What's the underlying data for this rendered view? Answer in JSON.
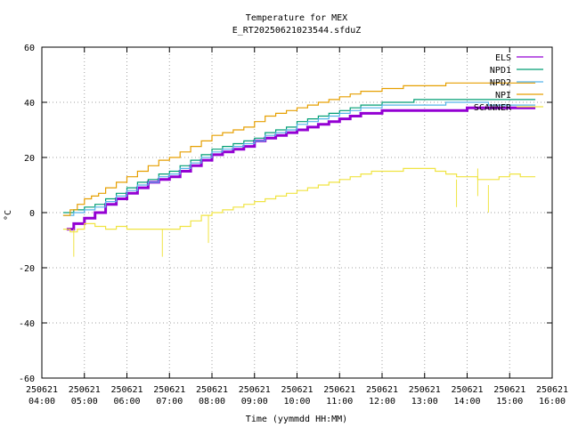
{
  "chart_data": {
    "type": "line",
    "title": "Temperature for MEX",
    "subtitle": "E_RT20250621023544.sfduZ",
    "xlabel": "Time (yymmdd HH:MM)",
    "ylabel": "°C",
    "xlim": [
      "250621 04:00",
      "250621 16:00"
    ],
    "ylim": [
      -60,
      60
    ],
    "grid": true,
    "legend_position": "top-right",
    "x_ticks": [
      {
        "date": "250621",
        "time": "04:00"
      },
      {
        "date": "250621",
        "time": "05:00"
      },
      {
        "date": "250621",
        "time": "06:00"
      },
      {
        "date": "250621",
        "time": "07:00"
      },
      {
        "date": "250621",
        "time": "08:00"
      },
      {
        "date": "250621",
        "time": "09:00"
      },
      {
        "date": "250621",
        "time": "10:00"
      },
      {
        "date": "250621",
        "time": "11:00"
      },
      {
        "date": "250621",
        "time": "12:00"
      },
      {
        "date": "250621",
        "time": "13:00"
      },
      {
        "date": "250621",
        "time": "14:00"
      },
      {
        "date": "250621",
        "time": "15:00"
      },
      {
        "date": "250621",
        "time": "16:00"
      }
    ],
    "y_ticks": [
      "60",
      "40",
      "20",
      "0",
      "-20",
      "-40",
      "-60"
    ],
    "series": [
      {
        "name": "ELS",
        "color": "#9400d3",
        "points": [
          [
            "04:35",
            -6
          ],
          [
            "04:45",
            -4
          ],
          [
            "05:00",
            -2
          ],
          [
            "05:15",
            0
          ],
          [
            "05:30",
            3
          ],
          [
            "05:45",
            5
          ],
          [
            "06:00",
            7
          ],
          [
            "06:15",
            9
          ],
          [
            "06:30",
            11
          ],
          [
            "06:45",
            12
          ],
          [
            "07:00",
            13
          ],
          [
            "07:15",
            15
          ],
          [
            "07:30",
            17
          ],
          [
            "07:45",
            19
          ],
          [
            "08:00",
            21
          ],
          [
            "08:15",
            22
          ],
          [
            "08:30",
            23
          ],
          [
            "08:45",
            24
          ],
          [
            "09:00",
            26
          ],
          [
            "09:15",
            27
          ],
          [
            "09:30",
            28
          ],
          [
            "09:45",
            29
          ],
          [
            "10:00",
            30
          ],
          [
            "10:15",
            31
          ],
          [
            "10:30",
            32
          ],
          [
            "10:45",
            33
          ],
          [
            "11:00",
            34
          ],
          [
            "11:15",
            35
          ],
          [
            "11:30",
            36
          ],
          [
            "11:45",
            36
          ],
          [
            "12:00",
            37
          ],
          [
            "12:30",
            37
          ],
          [
            "13:00",
            37
          ],
          [
            "13:30",
            37
          ],
          [
            "14:00",
            38
          ],
          [
            "14:30",
            38
          ],
          [
            "15:00",
            38
          ],
          [
            "15:30",
            38
          ]
        ]
      },
      {
        "name": "NPD1",
        "color": "#009e73",
        "points": [
          [
            "04:30",
            0
          ],
          [
            "04:45",
            1
          ],
          [
            "05:00",
            2
          ],
          [
            "05:15",
            3
          ],
          [
            "05:30",
            5
          ],
          [
            "05:45",
            7
          ],
          [
            "06:00",
            9
          ],
          [
            "06:15",
            11
          ],
          [
            "06:30",
            12
          ],
          [
            "06:45",
            14
          ],
          [
            "07:00",
            15
          ],
          [
            "07:15",
            17
          ],
          [
            "07:30",
            19
          ],
          [
            "07:45",
            21
          ],
          [
            "08:00",
            23
          ],
          [
            "08:15",
            24
          ],
          [
            "08:30",
            25
          ],
          [
            "08:45",
            26
          ],
          [
            "09:00",
            27
          ],
          [
            "09:15",
            29
          ],
          [
            "09:30",
            30
          ],
          [
            "09:45",
            31
          ],
          [
            "10:00",
            33
          ],
          [
            "10:15",
            34
          ],
          [
            "10:30",
            35
          ],
          [
            "10:45",
            36
          ],
          [
            "11:00",
            37
          ],
          [
            "11:15",
            38
          ],
          [
            "11:30",
            39
          ],
          [
            "11:45",
            39
          ],
          [
            "12:00",
            40
          ],
          [
            "12:30",
            40
          ],
          [
            "12:45",
            41
          ],
          [
            "13:00",
            41
          ],
          [
            "13:30",
            41
          ],
          [
            "14:00",
            41
          ],
          [
            "14:30",
            41
          ],
          [
            "15:00",
            41
          ],
          [
            "15:30",
            41
          ]
        ]
      },
      {
        "name": "NPD2",
        "color": "#56b4e9",
        "points": [
          [
            "04:30",
            -1
          ],
          [
            "04:45",
            0
          ],
          [
            "05:00",
            1
          ],
          [
            "05:15",
            2
          ],
          [
            "05:30",
            4
          ],
          [
            "05:45",
            6
          ],
          [
            "06:00",
            8
          ],
          [
            "06:15",
            10
          ],
          [
            "06:30",
            11
          ],
          [
            "06:45",
            13
          ],
          [
            "07:00",
            14
          ],
          [
            "07:15",
            16
          ],
          [
            "07:30",
            18
          ],
          [
            "07:45",
            20
          ],
          [
            "08:00",
            22
          ],
          [
            "08:15",
            23
          ],
          [
            "08:30",
            24
          ],
          [
            "08:45",
            25
          ],
          [
            "09:00",
            26
          ],
          [
            "09:15",
            28
          ],
          [
            "09:30",
            29
          ],
          [
            "09:45",
            30
          ],
          [
            "10:00",
            32
          ],
          [
            "10:15",
            33
          ],
          [
            "10:30",
            34
          ],
          [
            "10:45",
            35
          ],
          [
            "11:00",
            36
          ],
          [
            "11:15",
            37
          ],
          [
            "11:30",
            38
          ],
          [
            "11:45",
            38
          ],
          [
            "12:00",
            39
          ],
          [
            "12:30",
            39
          ],
          [
            "13:00",
            39
          ],
          [
            "13:30",
            40
          ],
          [
            "14:00",
            40
          ],
          [
            "14:30",
            39
          ],
          [
            "15:00",
            39
          ],
          [
            "15:30",
            39
          ]
        ]
      },
      {
        "name": "NPI",
        "color": "#e69f00",
        "points": [
          [
            "04:30",
            -1
          ],
          [
            "04:40",
            1
          ],
          [
            "04:50",
            3
          ],
          [
            "05:00",
            5
          ],
          [
            "05:10",
            6
          ],
          [
            "05:20",
            7
          ],
          [
            "05:30",
            9
          ],
          [
            "05:45",
            11
          ],
          [
            "06:00",
            13
          ],
          [
            "06:15",
            15
          ],
          [
            "06:30",
            17
          ],
          [
            "06:45",
            19
          ],
          [
            "07:00",
            20
          ],
          [
            "07:15",
            22
          ],
          [
            "07:30",
            24
          ],
          [
            "07:45",
            26
          ],
          [
            "08:00",
            28
          ],
          [
            "08:15",
            29
          ],
          [
            "08:30",
            30
          ],
          [
            "08:45",
            31
          ],
          [
            "09:00",
            33
          ],
          [
            "09:15",
            35
          ],
          [
            "09:30",
            36
          ],
          [
            "09:45",
            37
          ],
          [
            "10:00",
            38
          ],
          [
            "10:15",
            39
          ],
          [
            "10:30",
            40
          ],
          [
            "10:45",
            41
          ],
          [
            "11:00",
            42
          ],
          [
            "11:15",
            43
          ],
          [
            "11:30",
            44
          ],
          [
            "12:00",
            45
          ],
          [
            "12:30",
            46
          ],
          [
            "13:00",
            46
          ],
          [
            "13:30",
            47
          ],
          [
            "14:00",
            47
          ],
          [
            "14:30",
            47
          ],
          [
            "15:00",
            47
          ],
          [
            "15:30",
            47
          ]
        ]
      },
      {
        "name": "SCANNER",
        "color": "#f0e442",
        "points": [
          [
            "04:30",
            -6
          ],
          [
            "04:40",
            -7
          ],
          [
            "04:50",
            -6
          ],
          [
            "05:00",
            -4
          ],
          [
            "05:15",
            -5
          ],
          [
            "05:30",
            -6
          ],
          [
            "05:45",
            -5
          ],
          [
            "06:00",
            -6
          ],
          [
            "06:30",
            -6
          ],
          [
            "07:00",
            -6
          ],
          [
            "07:15",
            -5
          ],
          [
            "07:30",
            -3
          ],
          [
            "07:45",
            -1
          ],
          [
            "08:00",
            0
          ],
          [
            "08:15",
            1
          ],
          [
            "08:30",
            2
          ],
          [
            "08:45",
            3
          ],
          [
            "09:00",
            4
          ],
          [
            "09:15",
            5
          ],
          [
            "09:30",
            6
          ],
          [
            "09:45",
            7
          ],
          [
            "10:00",
            8
          ],
          [
            "10:15",
            9
          ],
          [
            "10:30",
            10
          ],
          [
            "10:45",
            11
          ],
          [
            "11:00",
            12
          ],
          [
            "11:15",
            13
          ],
          [
            "11:30",
            14
          ],
          [
            "11:45",
            15
          ],
          [
            "12:00",
            15
          ],
          [
            "12:30",
            16
          ],
          [
            "13:00",
            16
          ],
          [
            "13:15",
            15
          ],
          [
            "13:30",
            14
          ],
          [
            "13:45",
            13
          ],
          [
            "14:00",
            13
          ],
          [
            "14:15",
            12
          ],
          [
            "14:30",
            12
          ],
          [
            "14:45",
            13
          ],
          [
            "15:00",
            14
          ],
          [
            "15:15",
            13
          ],
          [
            "15:30",
            13
          ]
        ],
        "spikes": [
          [
            "04:45",
            -16
          ],
          [
            "07:55",
            -11
          ],
          [
            "06:50",
            -16
          ],
          [
            "13:45",
            2
          ],
          [
            "14:15",
            6
          ],
          [
            "14:30",
            0
          ]
        ]
      }
    ]
  }
}
